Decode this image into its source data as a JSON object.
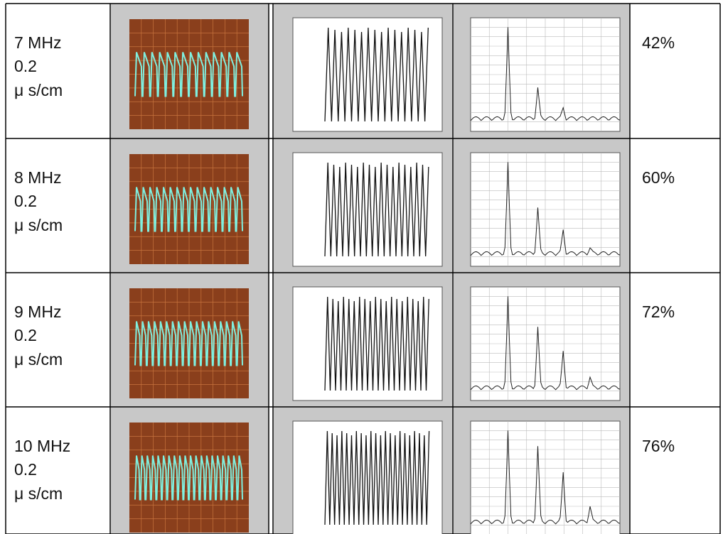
{
  "rows": [
    {
      "frequency": "7 MHz",
      "scale": "0.2",
      "unit": "μ s/cm",
      "percent": "42%"
    },
    {
      "frequency": "8 MHz",
      "scale": "0.2",
      "unit": "μ s/cm",
      "percent": "60%"
    },
    {
      "frequency": "9 MHz",
      "scale": "0.2",
      "unit": "μ s/cm",
      "percent": "72%"
    },
    {
      "frequency": "10 MHz",
      "scale": "0.2",
      "unit": "μ s/cm",
      "percent": "76%"
    }
  ]
}
